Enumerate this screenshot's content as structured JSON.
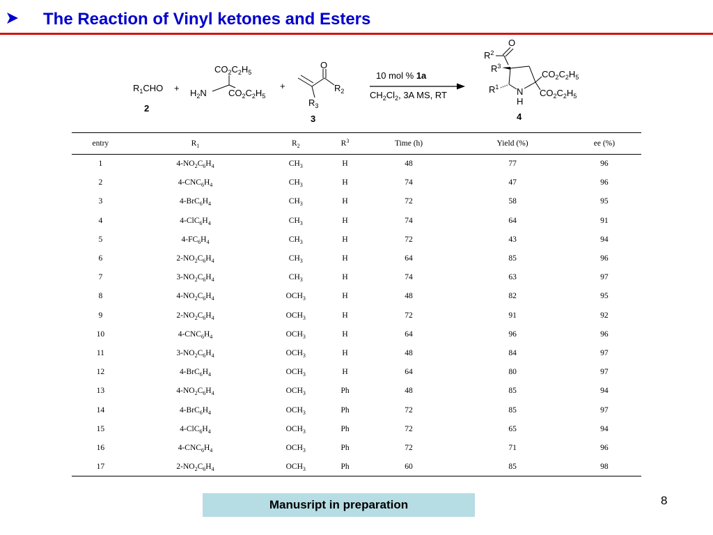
{
  "slide": {
    "title": "The Reaction of Vinyl ketones and Esters",
    "footer": "Manusript in preparation",
    "page_number": "8",
    "colors": {
      "title": "#0000cc",
      "rule": "#d21414",
      "footer_bg": "#b7dde4"
    }
  },
  "scheme": {
    "reactant_2_label": "2",
    "reactant_3_label": "3",
    "product_4_label": "4",
    "plus": "+",
    "catalyst_text": "10 mol %",
    "catalyst_id": "1a",
    "conditions_tail": ", 3A MS, RT"
  },
  "table": {
    "headers": [
      "entry",
      "R",
      "R",
      "R",
      "Time (h)",
      "Yield (%)",
      "ee (%)"
    ],
    "rows": [
      {
        "entry": "1",
        "r1": "4-NO2C6H4",
        "r2": "CH3",
        "r3": "H",
        "time": "48",
        "yield": "77",
        "ee": "96"
      },
      {
        "entry": "2",
        "r1": "4-CNC6H4",
        "r2": "CH3",
        "r3": "H",
        "time": "74",
        "yield": "47",
        "ee": "96"
      },
      {
        "entry": "3",
        "r1": "4-BrC6H4",
        "r2": "CH3",
        "r3": "H",
        "time": "72",
        "yield": "58",
        "ee": "95"
      },
      {
        "entry": "4",
        "r1": "4-ClC6H4",
        "r2": "CH3",
        "r3": "H",
        "time": "74",
        "yield": "64",
        "ee": "91"
      },
      {
        "entry": "5",
        "r1": "4-FC6H4",
        "r2": "CH3",
        "r3": "H",
        "time": "72",
        "yield": "43",
        "ee": "94"
      },
      {
        "entry": "6",
        "r1": "2-NO2C6H4",
        "r2": "CH3",
        "r3": "H",
        "time": "64",
        "yield": "85",
        "ee": "96"
      },
      {
        "entry": "7",
        "r1": "3-NO2C6H4",
        "r2": "CH3",
        "r3": "H",
        "time": "74",
        "yield": "63",
        "ee": "97"
      },
      {
        "entry": "8",
        "r1": "4-NO2C6H4",
        "r2": "OCH3",
        "r3": "H",
        "time": "48",
        "yield": "82",
        "ee": "95"
      },
      {
        "entry": "9",
        "r1": "2-NO2C6H4",
        "r2": "OCH3",
        "r3": "H",
        "time": "72",
        "yield": "91",
        "ee": "92"
      },
      {
        "entry": "10",
        "r1": "4-CNC6H4",
        "r2": "OCH3",
        "r3": "H",
        "time": "64",
        "yield": "96",
        "ee": "96"
      },
      {
        "entry": "11",
        "r1": "3-NO2C6H4",
        "r2": "OCH3",
        "r3": "H",
        "time": "48",
        "yield": "84",
        "ee": "97"
      },
      {
        "entry": "12",
        "r1": "4-BrC6H4",
        "r2": "OCH3",
        "r3": "H",
        "time": "64",
        "yield": "80",
        "ee": "97"
      },
      {
        "entry": "13",
        "r1": "4-NO2C6H4",
        "r2": "OCH3",
        "r3": "Ph",
        "time": "48",
        "yield": "85",
        "ee": "94"
      },
      {
        "entry": "14",
        "r1": "4-BrC6H4",
        "r2": "OCH3",
        "r3": "Ph",
        "time": "72",
        "yield": "85",
        "ee": "97"
      },
      {
        "entry": "15",
        "r1": "4-ClC6H4",
        "r2": "OCH3",
        "r3": "Ph",
        "time": "72",
        "yield": "65",
        "ee": "94"
      },
      {
        "entry": "16",
        "r1": "4-CNC6H4",
        "r2": "OCH3",
        "r3": "Ph",
        "time": "72",
        "yield": "71",
        "ee": "96"
      },
      {
        "entry": "17",
        "r1": "2-NO2C6H4",
        "r2": "OCH3",
        "r3": "Ph",
        "time": "60",
        "yield": "85",
        "ee": "98"
      }
    ]
  }
}
